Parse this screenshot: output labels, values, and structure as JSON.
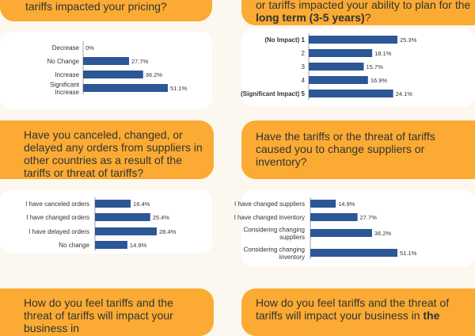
{
  "colors": {
    "accent": "#fbab33",
    "bar": "#2b5797",
    "background": "#fdf8ef"
  },
  "questions": {
    "q1": {
      "text": "tariffs impacted your pricing?"
    },
    "q2": {
      "pre": "or tariffs impacted your ability to plan for the ",
      "bold": "long term (3-5 years)",
      "post": "?"
    },
    "q3": {
      "text": "Have you canceled, changed, or delayed any orders from suppliers in other countries as a result of the tariffs or threat of tariffs?"
    },
    "q4": {
      "text": "Have the tariffs or the threat of tariffs caused you to change suppliers or inventory?"
    },
    "q5": {
      "text": "How do you feel tariffs and the threat of tariffs will impact your business in"
    },
    "q6": {
      "pre": "How do you feel tariffs and the threat of tariffs will impact your business in ",
      "bold": "the"
    }
  },
  "chart_data": [
    {
      "type": "bar",
      "orientation": "horizontal",
      "categories": [
        [
          "Decrease"
        ],
        [
          "No Change"
        ],
        [
          "Increase"
        ],
        [
          "Significant",
          "Increase"
        ]
      ],
      "values": [
        0,
        27.7,
        36.2,
        51.1
      ],
      "value_labels": [
        "0%",
        "27.7%",
        "36.2%",
        "51.1%"
      ],
      "xlim": [
        0,
        51.1
      ]
    },
    {
      "type": "bar",
      "orientation": "horizontal",
      "categories": [
        [
          "(No Impact) 1"
        ],
        [
          "2"
        ],
        [
          "3"
        ],
        [
          "4"
        ],
        [
          "(Significant Impact) 5"
        ]
      ],
      "bold_categories": [
        0,
        4
      ],
      "values": [
        25.3,
        18.1,
        15.7,
        16.9,
        24.1
      ],
      "value_labels": [
        "25.3%",
        "18.1%",
        "15.7%",
        "16.9%",
        "24.1%"
      ],
      "xlim": [
        0,
        25.3
      ]
    },
    {
      "type": "bar",
      "orientation": "horizontal",
      "categories": [
        [
          "I have canceled orders"
        ],
        [
          "I have changed orders"
        ],
        [
          "I have delayed orders"
        ],
        [
          "No change"
        ]
      ],
      "values": [
        16.4,
        25.4,
        28.4,
        14.9
      ],
      "value_labels": [
        "16.4%",
        "25.4%",
        "28.4%",
        "14.9%"
      ],
      "xlim": [
        0,
        28.4
      ]
    },
    {
      "type": "bar",
      "orientation": "horizontal",
      "categories": [
        [
          "I have changed suppliers"
        ],
        [
          "I have changed inventory"
        ],
        [
          "Considering changing",
          "suppliers"
        ],
        [
          "Considering changing",
          "inventory"
        ]
      ],
      "values": [
        14.9,
        27.7,
        36.2,
        51.1
      ],
      "value_labels": [
        "14.9%",
        "27.7%",
        "36.2%",
        "51.1%"
      ],
      "xlim": [
        0,
        51.1
      ]
    }
  ]
}
